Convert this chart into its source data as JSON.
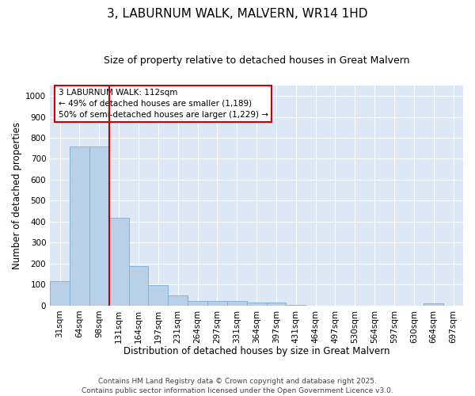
{
  "title": "3, LABURNUM WALK, MALVERN, WR14 1HD",
  "subtitle": "Size of property relative to detached houses in Great Malvern",
  "xlabel": "Distribution of detached houses by size in Great Malvern",
  "ylabel": "Number of detached properties",
  "bar_labels": [
    "31sqm",
    "64sqm",
    "98sqm",
    "131sqm",
    "164sqm",
    "197sqm",
    "231sqm",
    "264sqm",
    "297sqm",
    "331sqm",
    "364sqm",
    "397sqm",
    "431sqm",
    "464sqm",
    "497sqm",
    "530sqm",
    "564sqm",
    "597sqm",
    "630sqm",
    "664sqm",
    "697sqm"
  ],
  "bar_values": [
    117,
    757,
    757,
    420,
    190,
    97,
    48,
    22,
    22,
    22,
    15,
    15,
    5,
    0,
    0,
    0,
    0,
    0,
    0,
    10,
    0
  ],
  "bar_color": "#b8d0e8",
  "bar_edge_color": "#7aadd4",
  "background_color": "#dce8f5",
  "grid_color": "#ffffff",
  "fig_bg_color": "#ffffff",
  "vline_x": 2.5,
  "vline_color": "#cc0000",
  "annotation_line1": "3 LABURNUM WALK: 112sqm",
  "annotation_line2": "← 49% of detached houses are smaller (1,189)",
  "annotation_line3": "50% of semi-detached houses are larger (1,229) →",
  "annotation_box_color": "#cc0000",
  "footer_line1": "Contains HM Land Registry data © Crown copyright and database right 2025.",
  "footer_line2": "Contains public sector information licensed under the Open Government Licence v3.0.",
  "ylim": [
    0,
    1050
  ],
  "yticks": [
    0,
    100,
    200,
    300,
    400,
    500,
    600,
    700,
    800,
    900,
    1000
  ],
  "title_fontsize": 11,
  "subtitle_fontsize": 9,
  "axis_label_fontsize": 8.5,
  "tick_fontsize": 7.5,
  "annotation_fontsize": 7.5,
  "footer_fontsize": 6.5
}
